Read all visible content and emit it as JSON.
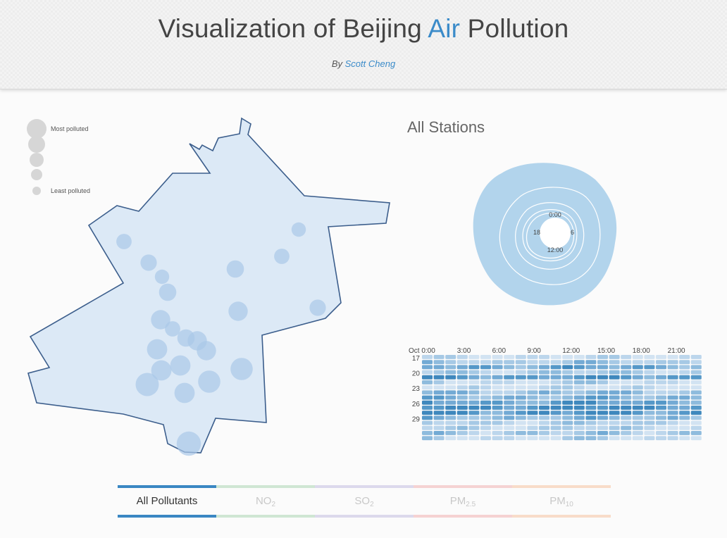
{
  "header": {
    "title_part1": "Visualization of Beijing ",
    "title_accent": "Air",
    "title_part2": " Pollution",
    "byline_prefix": "By ",
    "author": "Scott Cheng"
  },
  "colors": {
    "accent": "#3b8bc9",
    "map_fill": "#dce9f6",
    "map_stroke": "#3c5e8c",
    "station_bubble": "#a9c8e8",
    "radial_fill": "#b2d4ec",
    "heat_low": "#c8dcee",
    "heat_high": "#3f8bc2"
  },
  "legend": {
    "most": "Most polluted",
    "least": "Least polluted"
  },
  "stations": [
    {
      "size": 0.35
    },
    {
      "size": 0.3
    },
    {
      "size": 0.4
    },
    {
      "size": 0.35
    },
    {
      "size": 0.3
    },
    {
      "size": 0.45
    },
    {
      "size": 0.45
    },
    {
      "size": 0.55
    },
    {
      "size": 0.4
    },
    {
      "size": 0.55
    },
    {
      "size": 0.35
    },
    {
      "size": 0.45
    },
    {
      "size": 0.55
    },
    {
      "size": 0.55
    },
    {
      "size": 0.6
    },
    {
      "size": 0.6
    },
    {
      "size": 0.6
    },
    {
      "size": 0.7
    },
    {
      "size": 0.7
    },
    {
      "size": 0.75
    },
    {
      "size": 0.6
    },
    {
      "size": 0.8
    },
    {
      "size": 0.55
    },
    {
      "size": 0.5
    },
    {
      "size": 0.6
    },
    {
      "size": 0.35
    },
    {
      "size": 0.6
    }
  ],
  "station_panel": {
    "title": "All Stations",
    "radial_labels": {
      "top": "0:00",
      "right": "6",
      "bottom": "12:00",
      "left": "18"
    }
  },
  "heatmap": {
    "x_ticks": [
      "Oct 0:00",
      "3:00",
      "6:00",
      "9:00",
      "12:00",
      "15:00",
      "18:00",
      "21:00"
    ],
    "y_ticks": [
      "17",
      "20",
      "23",
      "26",
      "29"
    ]
  },
  "tabs": [
    {
      "label": "All Pollutants",
      "sub": "",
      "color": "#3a87c3",
      "faded": "#3a87c3",
      "active": true
    },
    {
      "label": "NO",
      "sub": "2",
      "color": "#7cc08a",
      "faded": "#cfe6d3",
      "active": false
    },
    {
      "label": "SO",
      "sub": "2",
      "color": "#a39ad0",
      "faded": "#dcd9ec",
      "active": false
    },
    {
      "label": "PM",
      "sub": "2.5",
      "color": "#ef9a9a",
      "faded": "#f5d2d2",
      "active": false
    },
    {
      "label": "PM",
      "sub": "10",
      "color": "#f6b48c",
      "faded": "#f8dcc9",
      "active": false
    }
  ]
}
